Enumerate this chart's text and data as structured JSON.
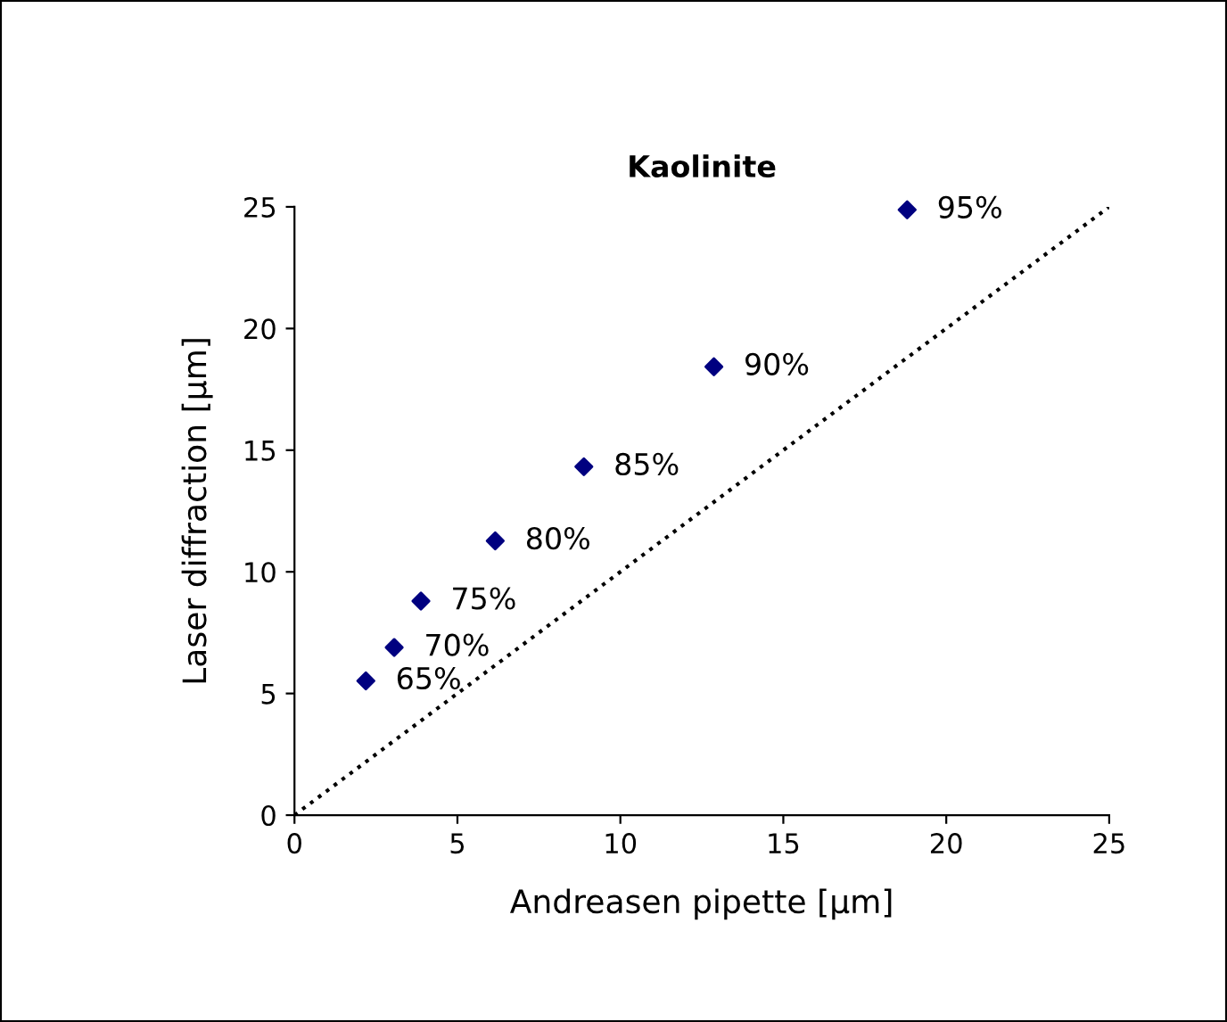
{
  "chart_data": {
    "type": "scatter",
    "title": "Kaolinite",
    "xlabel": "Andreasen pipette [μm]",
    "ylabel": "Laser diffraction [μm]",
    "xlim": [
      0,
      25
    ],
    "ylim": [
      0,
      25
    ],
    "xticks": [
      0,
      5,
      10,
      15,
      20,
      25
    ],
    "yticks": [
      0,
      5,
      10,
      15,
      20,
      25
    ],
    "grid": false,
    "legend": false,
    "annotations": [
      {
        "text": "65%",
        "x": 2.19,
        "y": 5.52
      },
      {
        "text": "70%",
        "x": 3.06,
        "y": 6.89
      },
      {
        "text": "75%",
        "x": 3.88,
        "y": 8.8
      },
      {
        "text": "80%",
        "x": 6.16,
        "y": 11.27
      },
      {
        "text": "85%",
        "x": 8.88,
        "y": 14.32
      },
      {
        "text": "90%",
        "x": 12.87,
        "y": 18.43
      },
      {
        "text": "95%",
        "x": 18.8,
        "y": 24.88
      }
    ],
    "series": [
      {
        "color": "#000080",
        "marker": "diamond",
        "x": [
          2.19,
          3.06,
          3.88,
          6.16,
          8.88,
          12.87,
          18.8
        ],
        "values": [
          5.52,
          6.89,
          8.8,
          11.27,
          14.32,
          18.43,
          24.88
        ]
      },
      {
        "type": "line",
        "color": "#000000",
        "line_style": "dotted",
        "marker": "none",
        "x": [
          0,
          25
        ],
        "values": [
          0,
          25
        ]
      }
    ]
  }
}
